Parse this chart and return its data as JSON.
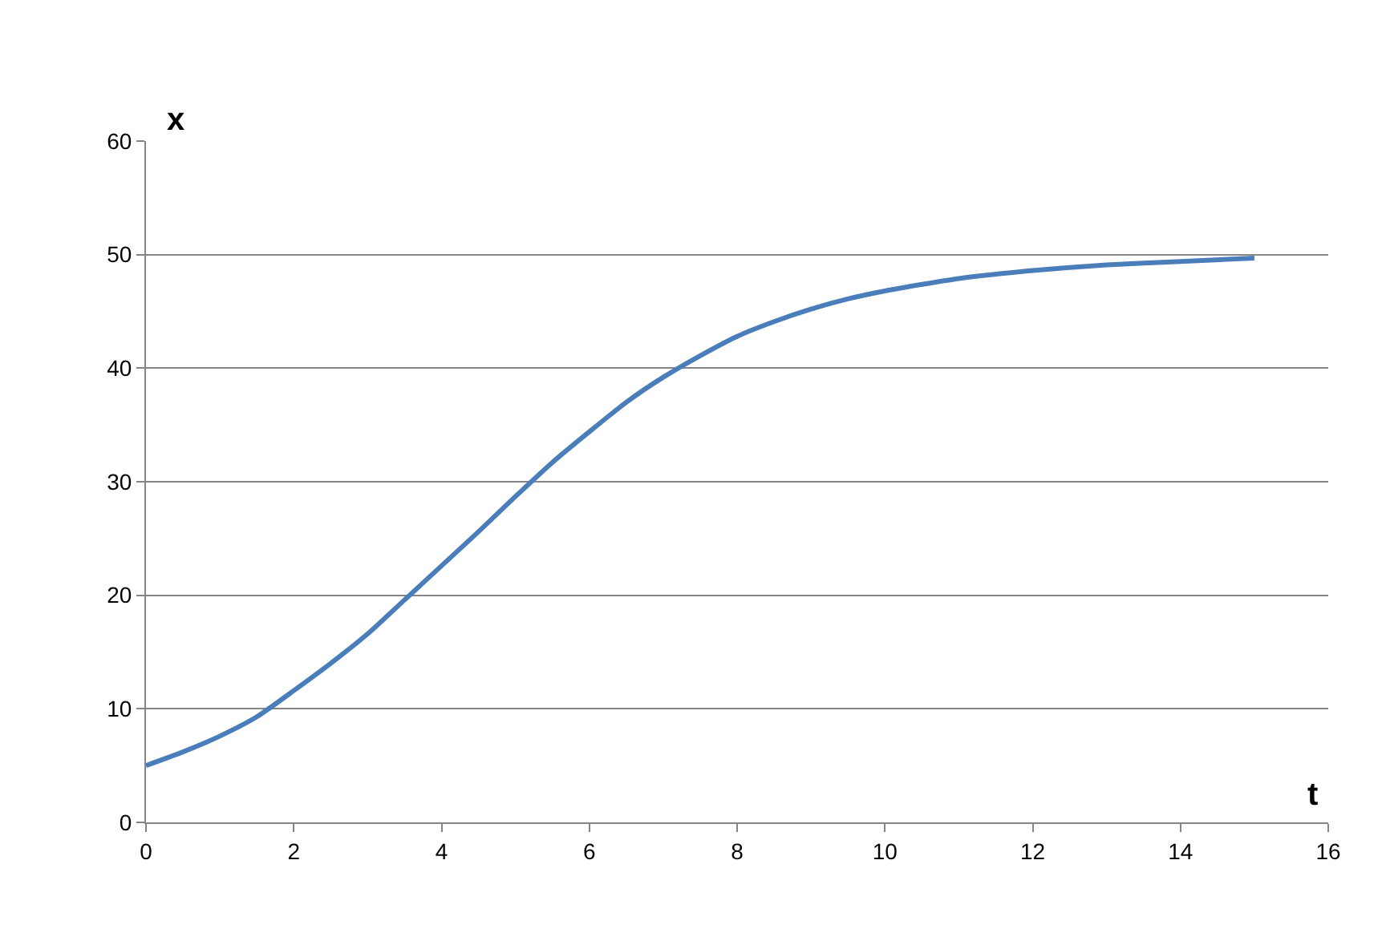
{
  "chart_data": {
    "type": "line",
    "xlabel": "t",
    "ylabel": "x",
    "x": [
      0,
      0.5,
      1,
      1.5,
      2,
      2.5,
      3,
      3.5,
      4,
      4.5,
      5,
      5.5,
      6,
      6.5,
      7,
      7.5,
      8,
      8.5,
      9,
      9.5,
      10,
      11,
      12,
      13,
      14,
      15
    ],
    "series": [
      {
        "color": "#4a7ebb",
        "values": [
          5.0,
          6.2,
          7.6,
          9.3,
          11.6,
          14.0,
          16.6,
          19.6,
          22.6,
          25.6,
          28.7,
          31.7,
          34.4,
          37.0,
          39.2,
          41.1,
          42.8,
          44.1,
          45.2,
          46.1,
          46.8,
          47.9,
          48.6,
          49.1,
          49.4,
          49.7
        ]
      }
    ],
    "xlim": [
      0,
      16
    ],
    "xticks": [
      0,
      2,
      4,
      6,
      8,
      10,
      12,
      14,
      16
    ],
    "ylim": [
      0,
      60
    ],
    "yticks": [
      0,
      10,
      20,
      30,
      40,
      50,
      60
    ],
    "grid": "y",
    "marker": "none",
    "line_style": "solid"
  }
}
